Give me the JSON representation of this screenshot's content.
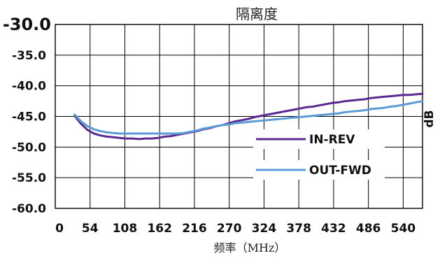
{
  "chart_data": {
    "type": "line",
    "title": "隔离度",
    "xlabel": "频率（MHz）",
    "ylabel": "dB",
    "xlim": [
      0,
      570
    ],
    "ylim": [
      -60,
      -30
    ],
    "x_ticks": [
      "0",
      "54",
      "108",
      "162",
      "216",
      "270",
      "324",
      "378",
      "432",
      "486",
      "540"
    ],
    "y_ticks": [
      "-30.0",
      "-35.0",
      "-40.0",
      "-45.0",
      "-50.0",
      "-55.0",
      "-60.0"
    ],
    "grid": true,
    "legend_position": "right",
    "series": [
      {
        "name": "IN-REV",
        "color": "#5b2a91",
        "x": [
          30,
          40,
          50,
          60,
          70,
          80,
          90,
          100,
          110,
          120,
          130,
          140,
          150,
          160,
          170,
          180,
          190,
          200,
          210,
          220,
          230,
          240,
          250,
          260,
          270,
          280,
          290,
          300,
          310,
          320,
          330,
          340,
          350,
          360,
          370,
          380,
          390,
          400,
          410,
          420,
          430,
          440,
          450,
          460,
          470,
          480,
          490,
          500,
          510,
          520,
          530,
          540,
          550,
          560,
          570
        ],
        "y": [
          -44.9,
          -46.2,
          -47.2,
          -47.8,
          -48.1,
          -48.3,
          -48.4,
          -48.5,
          -48.6,
          -48.6,
          -48.7,
          -48.6,
          -48.6,
          -48.5,
          -48.3,
          -48.2,
          -48.0,
          -47.8,
          -47.6,
          -47.4,
          -47.1,
          -46.9,
          -46.6,
          -46.4,
          -46.1,
          -45.8,
          -45.6,
          -45.4,
          -45.1,
          -44.9,
          -44.7,
          -44.5,
          -44.3,
          -44.1,
          -43.9,
          -43.7,
          -43.5,
          -43.4,
          -43.2,
          -43.0,
          -42.8,
          -42.7,
          -42.5,
          -42.4,
          -42.3,
          -42.2,
          -42.0,
          -41.9,
          -41.8,
          -41.7,
          -41.6,
          -41.5,
          -41.5,
          -41.4,
          -41.3
        ]
      },
      {
        "name": "OUT-FWD",
        "color": "#5b9bd5",
        "x": [
          30,
          40,
          50,
          60,
          70,
          80,
          90,
          100,
          110,
          120,
          130,
          140,
          150,
          160,
          170,
          180,
          190,
          200,
          210,
          220,
          230,
          240,
          250,
          260,
          270,
          280,
          290,
          300,
          310,
          320,
          330,
          340,
          350,
          360,
          370,
          380,
          390,
          400,
          410,
          420,
          430,
          440,
          450,
          460,
          470,
          480,
          490,
          500,
          510,
          520,
          530,
          540,
          550,
          560,
          570
        ],
        "y": [
          -44.7,
          -45.8,
          -46.6,
          -47.1,
          -47.4,
          -47.6,
          -47.7,
          -47.8,
          -47.8,
          -47.8,
          -47.8,
          -47.8,
          -47.8,
          -47.8,
          -47.8,
          -47.8,
          -47.8,
          -47.7,
          -47.5,
          -47.3,
          -47.0,
          -46.8,
          -46.6,
          -46.4,
          -46.3,
          -46.1,
          -46.0,
          -45.9,
          -45.8,
          -45.7,
          -45.6,
          -45.5,
          -45.4,
          -45.3,
          -45.2,
          -45.1,
          -45.0,
          -44.9,
          -44.8,
          -44.7,
          -44.6,
          -44.5,
          -44.3,
          -44.2,
          -44.1,
          -44.0,
          -43.8,
          -43.7,
          -43.6,
          -43.4,
          -43.3,
          -43.1,
          -42.9,
          -42.7,
          -42.5
        ]
      }
    ]
  }
}
